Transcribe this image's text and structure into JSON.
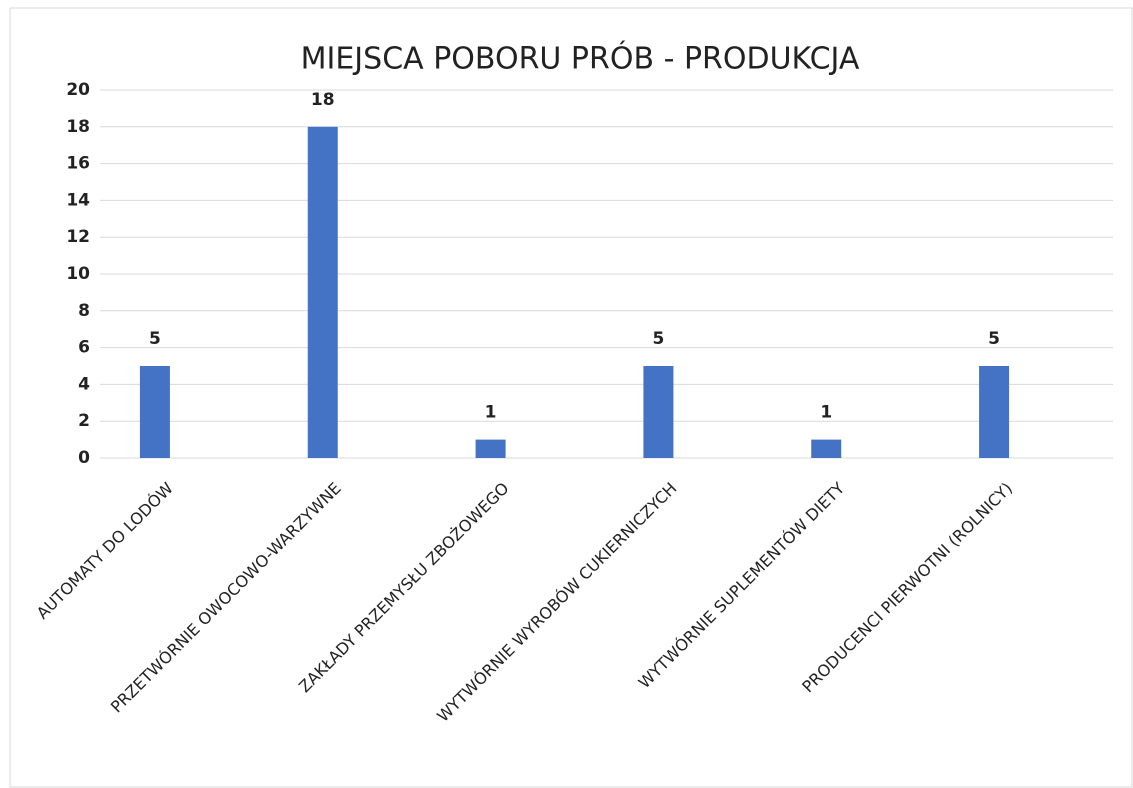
{
  "chart_data": {
    "type": "bar",
    "title": "MIEJSCA POBORU PRÓB - PRODUKCJA",
    "categories": [
      "AUTOMATY DO LODÓW",
      "PRZETWÓRNIE OWOCOWO-WARZYWNE",
      "ZAKŁADY PRZEMYSŁU ZBOŻOWEGO",
      "WYTWÓRNIE WYROBÓW CUKIERNICZYCH",
      "WYTWÓRNIE SUPLEMENTÓW DIETY",
      "PRODUCENCI PIERWOTNI (ROLNICY)"
    ],
    "values": [
      5,
      18,
      1,
      5,
      1,
      5
    ],
    "color": "#4472c4",
    "ylim": [
      0,
      20
    ],
    "yticks": [
      0,
      2,
      4,
      6,
      8,
      10,
      12,
      14,
      16,
      18,
      20
    ],
    "grid": true
  }
}
